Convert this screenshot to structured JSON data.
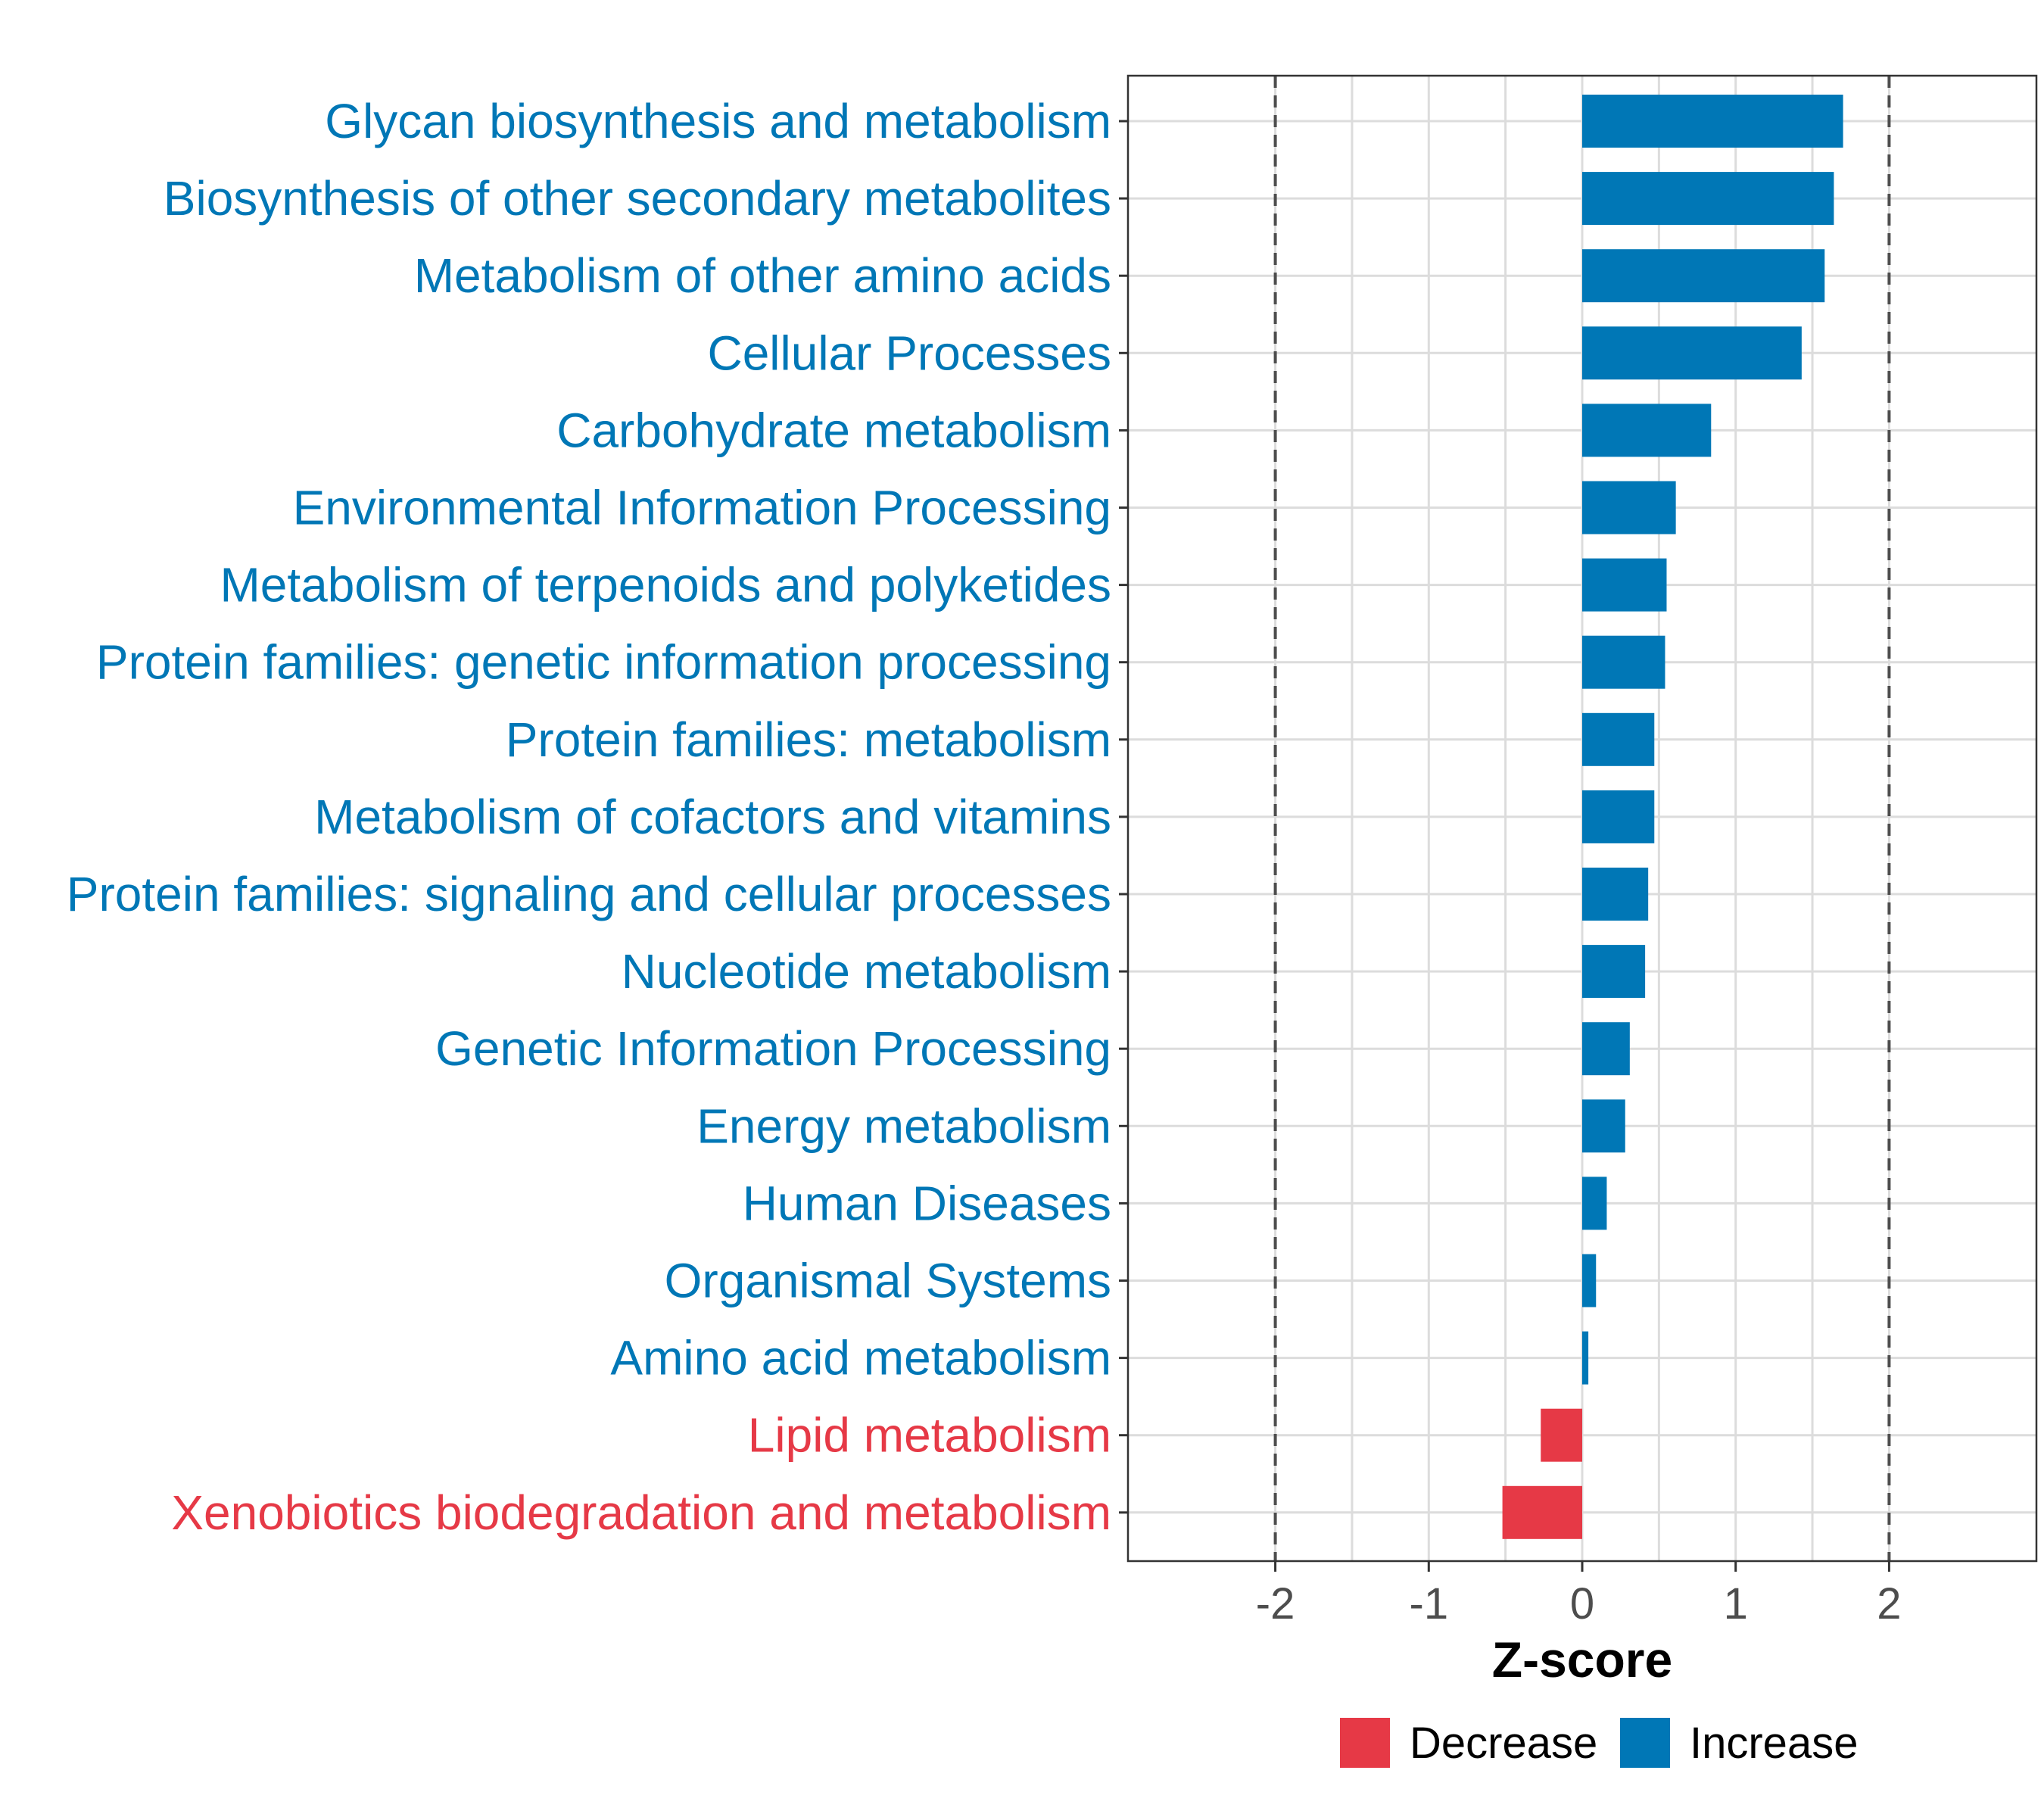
{
  "chart_data": {
    "type": "bar",
    "orientation": "horizontal",
    "xlabel": "Z-score",
    "xlim": [
      -2.96,
      2.96
    ],
    "xticks": [
      -2,
      -1,
      0,
      1,
      2
    ],
    "xtick_labels": [
      "-2",
      "-1",
      "0",
      "1",
      "2"
    ],
    "reference_lines": [
      -2,
      2
    ],
    "grid": true,
    "categories": [
      "Glycan biosynthesis and metabolism",
      "Biosynthesis of other secondary metabolites",
      "Metabolism of other amino acids",
      "Cellular Processes",
      "Carbohydrate metabolism",
      "Environmental Information Processing",
      "Metabolism of terpenoids and polyketides",
      "Protein families: genetic information processing",
      "Protein families: metabolism",
      "Metabolism of cofactors and vitamins",
      "Protein families: signaling and cellular processes",
      "Nucleotide metabolism",
      "Genetic Information Processing",
      "Energy metabolism",
      "Human Diseases",
      "Organismal Systems",
      "Amino acid metabolism",
      "Lipid metabolism",
      "Xenobiotics biodegradation and metabolism"
    ],
    "values": [
      1.7,
      1.64,
      1.58,
      1.43,
      0.84,
      0.61,
      0.55,
      0.54,
      0.47,
      0.47,
      0.43,
      0.41,
      0.31,
      0.28,
      0.16,
      0.09,
      0.04,
      -0.27,
      -0.52
    ],
    "groups": [
      "Increase",
      "Increase",
      "Increase",
      "Increase",
      "Increase",
      "Increase",
      "Increase",
      "Increase",
      "Increase",
      "Increase",
      "Increase",
      "Increase",
      "Increase",
      "Increase",
      "Increase",
      "Increase",
      "Increase",
      "Decrease",
      "Decrease"
    ],
    "legend": {
      "position": "bottom",
      "items": [
        {
          "label": "Decrease",
          "color": "#E63946"
        },
        {
          "label": "Increase",
          "color": "#0077B6"
        }
      ]
    }
  }
}
